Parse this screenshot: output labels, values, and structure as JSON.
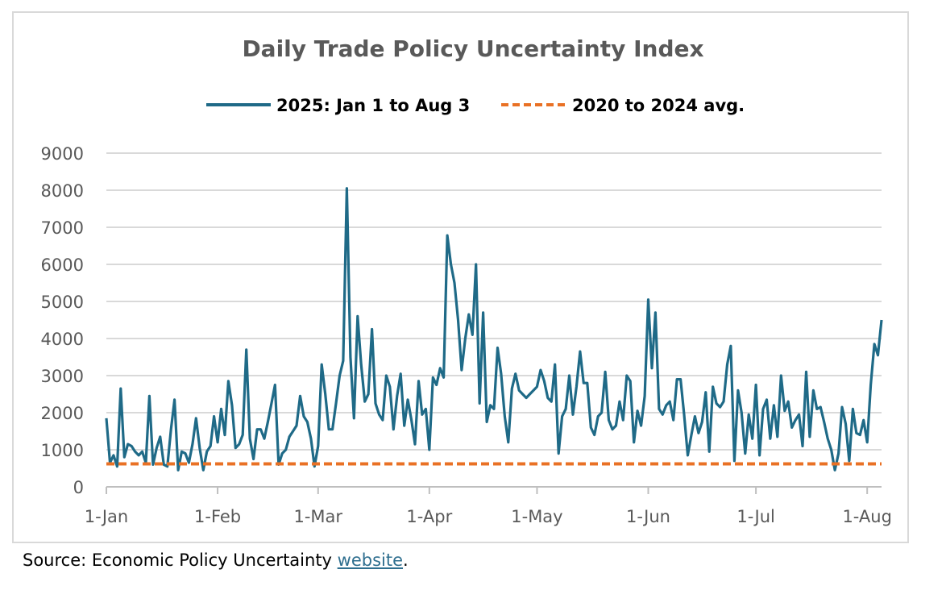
{
  "chart_data": {
    "type": "line",
    "title": "Daily Trade Policy Uncertainty Index",
    "xlabel": "",
    "ylabel": "",
    "ylim": [
      0,
      9000
    ],
    "yticks": [
      0,
      1000,
      2000,
      3000,
      4000,
      5000,
      6000,
      7000,
      8000,
      9000
    ],
    "xlim_day": [
      0,
      216
    ],
    "x_ticks": [
      {
        "day": 0,
        "label": "1-Jan"
      },
      {
        "day": 31,
        "label": "1-Feb"
      },
      {
        "day": 59,
        "label": "1-Mar"
      },
      {
        "day": 90,
        "label": "1-Apr"
      },
      {
        "day": 120,
        "label": "1-May"
      },
      {
        "day": 151,
        "label": "1-Jun"
      },
      {
        "day": 181,
        "label": "1-Jul"
      },
      {
        "day": 212,
        "label": "1-Aug"
      }
    ],
    "series": [
      {
        "name": "2025: Jan 1 to Aug 3",
        "color": "#1f6a87",
        "style": "solid",
        "values": [
          1850,
          650,
          850,
          550,
          2650,
          800,
          1150,
          1100,
          950,
          850,
          950,
          650,
          2450,
          600,
          1050,
          1350,
          600,
          550,
          1550,
          2350,
          450,
          950,
          900,
          650,
          1150,
          1850,
          1050,
          450,
          950,
          1100,
          1900,
          1200,
          2100,
          1400,
          2850,
          2200,
          1050,
          1150,
          1400,
          3700,
          1300,
          750,
          1550,
          1550,
          1300,
          1750,
          2250,
          2750,
          600,
          900,
          1000,
          1350,
          1500,
          1650,
          2450,
          1900,
          1750,
          1300,
          550,
          1100,
          3300,
          2500,
          1550,
          1550,
          2250,
          3000,
          3400,
          8050,
          3500,
          1850,
          4600,
          3300,
          2300,
          2500,
          4250,
          2250,
          1950,
          1800,
          3000,
          2700,
          1550,
          2450,
          3050,
          1650,
          2350,
          1800,
          1150,
          2850,
          1950,
          2100,
          1000,
          2950,
          2750,
          3200,
          2950,
          6780,
          6000,
          5500,
          4500,
          3150,
          4000,
          4650,
          4100,
          6000,
          2250,
          4700,
          1750,
          2200,
          2100,
          3750,
          3050,
          1900,
          1200,
          2650,
          3050,
          2600,
          2500,
          2400,
          2500,
          2600,
          2700,
          3150,
          2850,
          2400,
          2300,
          3300,
          900,
          1900,
          2100,
          3000,
          1950,
          2700,
          3650,
          2800,
          2800,
          1600,
          1400,
          1900,
          2000,
          3100,
          1800,
          1550,
          1650,
          2300,
          1800,
          3000,
          2850,
          1200,
          2050,
          1650,
          2450,
          5050,
          3200,
          4700,
          2100,
          1950,
          2200,
          2300,
          1800,
          2900,
          2900,
          1950,
          850,
          1400,
          1900,
          1450,
          1750,
          2550,
          950,
          2700,
          2250,
          2150,
          2300,
          3300,
          3800,
          700,
          2600,
          2000,
          900,
          1950,
          1300,
          2750,
          850,
          2100,
          2350,
          1300,
          2200,
          1350,
          3000,
          2050,
          2300,
          1600,
          1800,
          1950,
          1100,
          3100,
          1350,
          2600,
          2100,
          2150,
          1750,
          1300,
          1000,
          450,
          900,
          2150,
          1700,
          700,
          2100,
          1450,
          1400,
          1800,
          1200,
          2750,
          3850,
          3550,
          4500
        ]
      },
      {
        "name": "2020 to 2024 avg.",
        "color": "#e97125",
        "style": "dashed",
        "values": [
          620
        ]
      }
    ],
    "legend_position": "top-center",
    "grid": true
  },
  "source": {
    "prefix": "Source: Economic Policy Uncertainty ",
    "link_text": "website",
    "suffix": "."
  }
}
